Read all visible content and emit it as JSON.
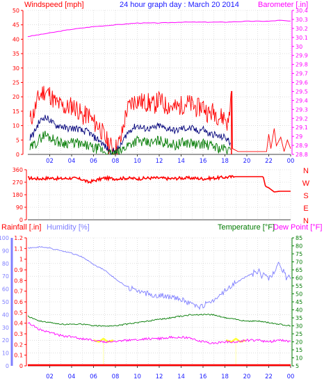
{
  "colors": {
    "wind": "#ff0000",
    "gust": "#ff0000",
    "avg": "#00007a",
    "min": "#007a00",
    "baro": "#ff00ff",
    "title": "#1a1aff",
    "dir": "#ff0000",
    "humidity": "#7f7fff",
    "temperature": "#007a00",
    "dewpoint": "#ff00ff",
    "rain": "#ff0000",
    "grid": "#c8c8c8",
    "axis": "#404040",
    "sun": "#ffff33"
  },
  "chart_data": [
    {
      "type": "line",
      "title": "24 hour graph day : March 20 2014",
      "ylabel_left": "Windspeed [mph]",
      "ylabel_right": "Barometer [.in]",
      "ylim_left": [
        0,
        50
      ],
      "yticks_left": [
        "50",
        "45",
        "40",
        "35",
        "30",
        "25",
        "20",
        "15",
        "10",
        "5",
        "0"
      ],
      "ylim_right": [
        28.8,
        30.4
      ],
      "yticks_right": [
        "30.4",
        "30.3",
        "30.2",
        "30.1",
        "30",
        "29.9",
        "29.8",
        "29.7",
        "29.6",
        "29.5",
        "29.4",
        "29.3",
        "29.2",
        "29.1",
        "29",
        "28.9",
        "28.8"
      ],
      "x_hours": [
        0,
        24
      ],
      "x_tick_labels": [
        "02",
        "04",
        "06",
        "08",
        "10",
        "12",
        "14",
        "16",
        "18",
        "20",
        "22",
        "00"
      ],
      "grid": true,
      "series": [
        {
          "name": "Wind gust",
          "axis": "left",
          "x": [
            0.2,
            0.5,
            1,
            1.5,
            2,
            2.5,
            3,
            3.5,
            4,
            4.5,
            5,
            5.5,
            6,
            6.5,
            7,
            7.5,
            8,
            8.5,
            9,
            9.5,
            10,
            10.5,
            11,
            11.5,
            12,
            12.5,
            13,
            13.5,
            14,
            14.5,
            15,
            15.5,
            16,
            16.5,
            17,
            17.5,
            18,
            18.3,
            18.6,
            19,
            20,
            21,
            21.8,
            22,
            22.5,
            23,
            23.5,
            23.9
          ],
          "y": [
            12,
            14,
            20,
            22,
            21,
            18,
            17,
            16,
            17,
            16,
            13,
            14,
            11,
            10,
            6,
            3,
            2,
            5,
            15,
            18,
            19,
            18,
            18,
            17,
            19,
            17,
            17,
            16,
            17,
            18,
            17,
            16,
            17,
            14,
            15,
            13,
            13,
            10,
            22,
            1,
            0,
            1,
            1,
            1,
            8,
            5,
            6,
            3
          ]
        },
        {
          "name": "Wind average",
          "axis": "left",
          "x": [
            0.2,
            0.5,
            1,
            1.5,
            2,
            2.5,
            3,
            3.5,
            4,
            4.5,
            5,
            5.5,
            6,
            6.5,
            7,
            7.5,
            8,
            8.5,
            9,
            9.5,
            10,
            10.5,
            11,
            11.5,
            12,
            12.5,
            13,
            13.5,
            14,
            14.5,
            15,
            15.5,
            16,
            16.5,
            17,
            17.5,
            18,
            18.5
          ],
          "y": [
            6,
            7,
            11,
            13,
            12,
            10,
            10,
            9,
            9,
            9,
            8,
            8,
            6,
            5,
            3,
            1,
            1,
            3,
            7,
            9,
            10,
            9,
            9,
            9,
            10,
            9,
            9,
            8,
            9,
            9,
            9,
            8,
            9,
            7,
            7,
            6,
            6,
            4
          ]
        },
        {
          "name": "Wind minimum",
          "axis": "left",
          "x": [
            0.2,
            0.5,
            1,
            1.5,
            2,
            2.5,
            3,
            3.5,
            4,
            4.5,
            5,
            5.5,
            6,
            6.5,
            7,
            7.5,
            8,
            8.5,
            9,
            9.5,
            10,
            10.5,
            11,
            11.5,
            12,
            12.5,
            13,
            13.5,
            14,
            14.5,
            15,
            15.5,
            16,
            16.5,
            17,
            17.5,
            18,
            18.5
          ],
          "y": [
            2,
            3,
            5,
            7,
            6,
            5,
            4,
            4,
            4,
            4,
            3,
            3,
            2,
            2,
            1,
            0,
            0,
            1,
            3,
            4,
            5,
            4,
            4,
            4,
            5,
            4,
            4,
            3,
            4,
            4,
            4,
            3,
            4,
            3,
            3,
            2,
            2,
            1
          ]
        },
        {
          "name": "Barometer",
          "axis": "right",
          "x": [
            0,
            2,
            4,
            6,
            8,
            10,
            12,
            14,
            16,
            18,
            20,
            22,
            23,
            24
          ],
          "y": [
            30.11,
            30.15,
            30.19,
            30.22,
            30.24,
            30.26,
            30.26,
            30.27,
            30.27,
            30.27,
            30.28,
            30.28,
            30.29,
            30.28
          ]
        }
      ]
    },
    {
      "type": "line",
      "ylim": [
        0,
        360
      ],
      "yticks": [
        "360",
        "270",
        "180",
        "90",
        "0"
      ],
      "compass_labels": [
        "N",
        "W",
        "S",
        "E",
        "N"
      ],
      "x_hours": [
        0,
        24
      ],
      "series": [
        {
          "name": "Wind direction",
          "x": [
            0,
            1,
            2,
            3,
            4,
            5,
            5.5,
            6,
            6.5,
            7,
            8,
            9,
            10,
            11,
            12,
            13,
            14,
            15,
            16,
            17,
            18,
            19,
            20,
            21,
            21.5,
            21.7,
            22,
            22.5,
            23,
            24
          ],
          "y": [
            300,
            295,
            300,
            295,
            300,
            290,
            270,
            280,
            290,
            300,
            295,
            300,
            295,
            300,
            300,
            295,
            300,
            300,
            295,
            300,
            305,
            310,
            310,
            310,
            310,
            240,
            230,
            200,
            205,
            205
          ]
        }
      ]
    },
    {
      "type": "line",
      "ylabel_left_rain": "Rainfall [.in]",
      "ylabel_left_humidity": "Humidity [%]",
      "ylabel_right_temp": "Temperature [°F]",
      "ylabel_right_dew": "Dew Point [°F]",
      "ylim_rain": [
        0,
        1.2
      ],
      "yticks_rain": [
        "1.2",
        "1.1",
        "1",
        "0.9",
        "0.8",
        "0.7",
        "0.6",
        "0.5",
        "0.4",
        "0.3",
        "0.2",
        "0.1",
        "0"
      ],
      "ylim_humidity": [
        0,
        100
      ],
      "yticks_humidity": [
        "100",
        "90",
        "80",
        "70",
        "60",
        "50",
        "40",
        "30",
        "20",
        "10",
        "0"
      ],
      "ylim_temp": [
        5,
        85
      ],
      "yticks_temp": [
        "85",
        "80",
        "75",
        "70",
        "65",
        "60",
        "55",
        "50",
        "45",
        "40",
        "35",
        "30",
        "25",
        "20",
        "15",
        "10",
        "5"
      ],
      "x_hours": [
        0,
        24
      ],
      "x_tick_labels": [
        "02",
        "04",
        "06",
        "08",
        "10",
        "12",
        "14",
        "16",
        "18",
        "20",
        "22",
        "00"
      ],
      "sun_markers_hours": [
        6.9,
        19.0
      ],
      "series": [
        {
          "name": "Humidity",
          "axis": "humidity",
          "x": [
            0,
            1,
            2,
            3,
            4,
            5,
            6,
            7,
            8,
            9,
            10,
            11,
            12,
            13,
            14,
            15,
            15.5,
            16,
            16.5,
            17,
            18,
            19,
            20,
            21,
            21.5,
            22,
            22.5,
            23,
            23.5,
            24
          ],
          "y": [
            92,
            93,
            92,
            90,
            88,
            85,
            79,
            75,
            68,
            62,
            58,
            56,
            55,
            54,
            52,
            48,
            46,
            47,
            49,
            52,
            58,
            65,
            70,
            74,
            70,
            68,
            72,
            80,
            70,
            68
          ]
        },
        {
          "name": "Temperature",
          "axis": "temp",
          "x": [
            0,
            1,
            2,
            3,
            4,
            5,
            6,
            7,
            8,
            9,
            10,
            11,
            12,
            13,
            14,
            15,
            16,
            17,
            18,
            19,
            20,
            21,
            22,
            23,
            24
          ],
          "y": [
            36,
            33,
            32,
            31,
            31,
            31,
            30,
            30,
            30,
            31,
            32,
            33,
            34,
            35,
            36,
            37,
            37,
            37,
            35,
            34,
            33,
            33,
            32,
            31,
            30
          ]
        },
        {
          "name": "Dew Point",
          "axis": "temp",
          "x": [
            0,
            1,
            2,
            3,
            4,
            5,
            6,
            7,
            8,
            9,
            10,
            11,
            12,
            13,
            14,
            15,
            16,
            17,
            18,
            19,
            20,
            21,
            22,
            23,
            24
          ],
          "y": [
            32,
            28,
            26,
            24,
            23,
            22,
            21,
            20,
            20,
            21,
            21,
            22,
            22,
            23,
            23,
            22,
            20,
            19,
            20,
            20,
            21,
            21,
            20,
            21,
            20
          ]
        },
        {
          "name": "Rainfall",
          "axis": "rain",
          "x": [
            0,
            24
          ],
          "y": [
            0,
            0
          ]
        }
      ]
    }
  ]
}
